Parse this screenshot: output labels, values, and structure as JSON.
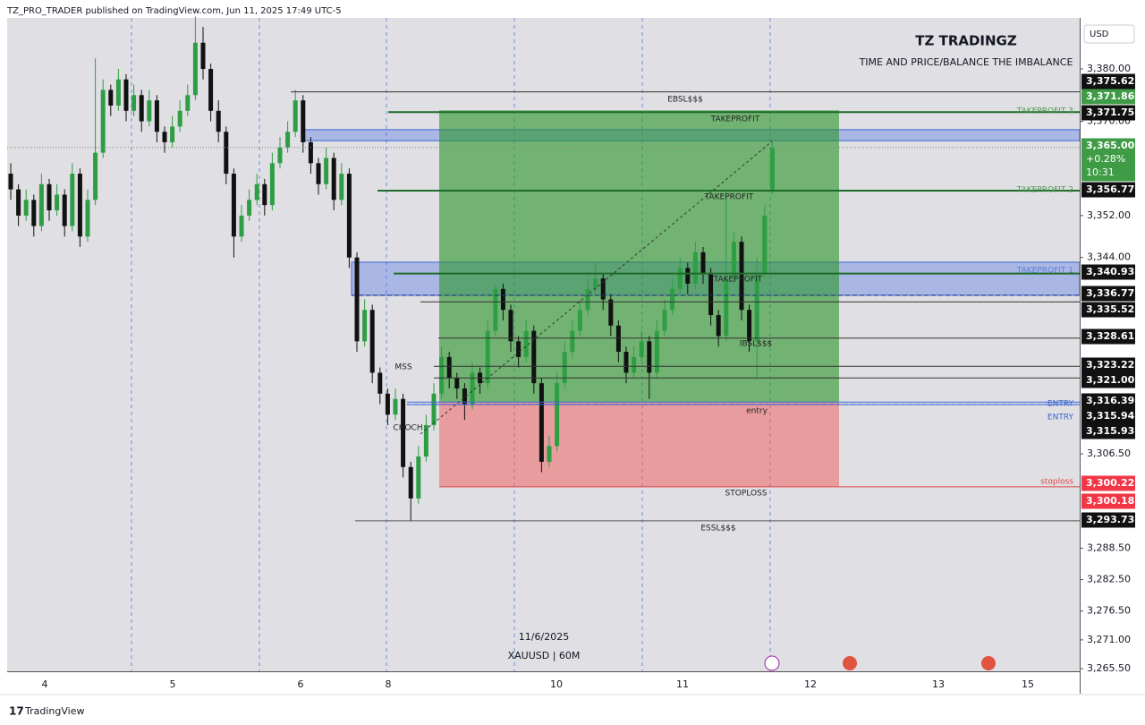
{
  "header": {
    "publisher": "TZ_PRO_TRADER published on TradingView.com, Jun 11, 2025 17:49 UTC-5"
  },
  "chart_data": {
    "type": "candlestick",
    "title": "TZ TRADINGZ",
    "subtitle": "TIME AND PRICE/BALANCE THE IMBALANCE",
    "currency": "USD",
    "date_label": "11/6/2025",
    "symbol_label": "XAUUSD | 60M",
    "up_color": "#2e9e44",
    "down_color": "#111111",
    "ylim": [
      3265,
      3389.74
    ],
    "yticks": [
      {
        "value": 3380,
        "label": "3,380.00"
      },
      {
        "value": 3370,
        "label": "3,370.00"
      },
      {
        "value": 3352,
        "label": "3,352.00"
      },
      {
        "value": 3344,
        "label": "3,344.00"
      },
      {
        "value": 3306.5,
        "label": "3,306.50"
      },
      {
        "value": 3288.5,
        "label": "3,288.50"
      },
      {
        "value": 3282.5,
        "label": "3,282.50"
      },
      {
        "value": 3276.5,
        "label": "3,276.50"
      },
      {
        "value": 3271,
        "label": "3,271.00"
      },
      {
        "value": 3265.5,
        "label": "3,265.50"
      }
    ],
    "xtick_labels": [
      "4",
      "5",
      "6",
      "8",
      "10",
      "11",
      "12",
      "13",
      "15"
    ],
    "ohlc": [
      [
        3360,
        3362,
        3355,
        3357
      ],
      [
        3357,
        3358,
        3350,
        3352
      ],
      [
        3352,
        3357,
        3351,
        3355
      ],
      [
        3355,
        3356,
        3348,
        3350
      ],
      [
        3350,
        3360,
        3349,
        3358
      ],
      [
        3358,
        3359,
        3351,
        3353
      ],
      [
        3353,
        3358,
        3352,
        3356
      ],
      [
        3356,
        3357,
        3348,
        3350
      ],
      [
        3350,
        3362,
        3349,
        3360
      ],
      [
        3360,
        3361,
        3346,
        3348
      ],
      [
        3348,
        3357,
        3347,
        3355
      ],
      [
        3355,
        3382,
        3354,
        3364
      ],
      [
        3364,
        3378,
        3363,
        3376
      ],
      [
        3376,
        3377,
        3371,
        3373
      ],
      [
        3373,
        3380,
        3372,
        3378
      ],
      [
        3378,
        3379,
        3370,
        3372
      ],
      [
        3372,
        3377,
        3371,
        3375
      ],
      [
        3375,
        3376,
        3368,
        3370
      ],
      [
        3370,
        3376,
        3369,
        3374
      ],
      [
        3374,
        3375,
        3366,
        3368
      ],
      [
        3368,
        3369,
        3364,
        3366
      ],
      [
        3366,
        3371,
        3365,
        3369
      ],
      [
        3369,
        3374,
        3368,
        3372
      ],
      [
        3372,
        3377,
        3371,
        3375
      ],
      [
        3375,
        3390,
        3374,
        3385
      ],
      [
        3385,
        3388,
        3378,
        3380
      ],
      [
        3380,
        3381,
        3370,
        3372
      ],
      [
        3372,
        3374,
        3366,
        3368
      ],
      [
        3368,
        3369,
        3358,
        3360
      ],
      [
        3360,
        3361,
        3344,
        3348
      ],
      [
        3348,
        3354,
        3347,
        3352
      ],
      [
        3352,
        3357,
        3351,
        3355
      ],
      [
        3355,
        3360,
        3354,
        3358
      ],
      [
        3358,
        3359,
        3352,
        3354
      ],
      [
        3354,
        3364,
        3353,
        3362
      ],
      [
        3362,
        3367,
        3361,
        3365
      ],
      [
        3365,
        3370,
        3364,
        3368
      ],
      [
        3368,
        3376,
        3367,
        3374
      ],
      [
        3374,
        3375,
        3364,
        3366
      ],
      [
        3366,
        3367,
        3360,
        3362
      ],
      [
        3362,
        3363,
        3356,
        3358
      ],
      [
        3358,
        3365,
        3357,
        3363
      ],
      [
        3363,
        3364,
        3353,
        3355
      ],
      [
        3355,
        3362,
        3354,
        3360
      ],
      [
        3360,
        3361,
        3342,
        3344
      ],
      [
        3344,
        3345,
        3326,
        3328
      ],
      [
        3328,
        3336,
        3327,
        3334
      ],
      [
        3334,
        3335,
        3320,
        3322
      ],
      [
        3322,
        3323,
        3316,
        3318
      ],
      [
        3318,
        3319,
        3312,
        3314
      ],
      [
        3314,
        3319,
        3313,
        3317
      ],
      [
        3317,
        3318,
        3302,
        3304
      ],
      [
        3304,
        3305,
        3293.7,
        3298
      ],
      [
        3298,
        3308,
        3297,
        3306
      ],
      [
        3306,
        3314,
        3305,
        3312
      ],
      [
        3312,
        3320,
        3311,
        3318
      ],
      [
        3318,
        3327,
        3317,
        3325
      ],
      [
        3325,
        3326,
        3319,
        3321
      ],
      [
        3321,
        3322,
        3317,
        3319
      ],
      [
        3319,
        3320,
        3313,
        3316
      ],
      [
        3316,
        3324,
        3315,
        3322
      ],
      [
        3322,
        3323,
        3318,
        3320
      ],
      [
        3320,
        3332,
        3319,
        3330
      ],
      [
        3330,
        3339,
        3329,
        3338
      ],
      [
        3338,
        3339,
        3332,
        3334
      ],
      [
        3334,
        3335,
        3326,
        3328
      ],
      [
        3328,
        3329,
        3323,
        3325
      ],
      [
        3325,
        3332,
        3324,
        3330
      ],
      [
        3330,
        3331,
        3318,
        3320
      ],
      [
        3320,
        3321,
        3303,
        3305
      ],
      [
        3305,
        3310,
        3304,
        3308
      ],
      [
        3308,
        3322,
        3307,
        3320
      ],
      [
        3320,
        3328,
        3319,
        3326
      ],
      [
        3326,
        3332,
        3325,
        3330
      ],
      [
        3330,
        3336,
        3329,
        3334
      ],
      [
        3334,
        3340,
        3333,
        3338
      ],
      [
        3338,
        3343,
        3337,
        3340
      ],
      [
        3340,
        3341,
        3334,
        3336
      ],
      [
        3336,
        3337,
        3329,
        3331
      ],
      [
        3331,
        3332,
        3324,
        3326
      ],
      [
        3326,
        3327,
        3320,
        3322
      ],
      [
        3322,
        3327,
        3321,
        3325
      ],
      [
        3325,
        3330,
        3324,
        3328
      ],
      [
        3328,
        3329,
        3317,
        3322
      ],
      [
        3322,
        3332,
        3321,
        3330
      ],
      [
        3330,
        3336,
        3329,
        3334
      ],
      [
        3334,
        3340,
        3333,
        3338
      ],
      [
        3338,
        3344,
        3337,
        3342
      ],
      [
        3342,
        3343,
        3337,
        3339
      ],
      [
        3339,
        3347,
        3338,
        3345
      ],
      [
        3345,
        3346,
        3339,
        3341
      ],
      [
        3341,
        3342,
        3331,
        3333
      ],
      [
        3333,
        3334,
        3327,
        3329
      ],
      [
        3329,
        3357,
        3328,
        3340
      ],
      [
        3340,
        3349,
        3339,
        3347
      ],
      [
        3347,
        3348,
        3332,
        3334
      ],
      [
        3334,
        3335,
        3326,
        3328
      ],
      [
        3328,
        3344,
        3321,
        3341
      ],
      [
        3341,
        3354,
        3340,
        3352
      ],
      [
        3357,
        3366,
        3356,
        3365
      ]
    ],
    "price_labels": [
      {
        "value": 3375.62,
        "label": "3,375.62",
        "color": "#111111"
      },
      {
        "value": 3371.86,
        "label": "3,371.86",
        "color": "#3f9b46"
      },
      {
        "value": 3371.75,
        "label": "3,371.75",
        "color": "#111111"
      },
      {
        "value": 3365.0,
        "label": "3,365.00",
        "change": "+0.28%",
        "countdown": "10:31",
        "color": "#3f9b46"
      },
      {
        "value": 3356.77,
        "label": "3,356.77",
        "color": "#111111"
      },
      {
        "value": 3340.93,
        "label": "3,340.93",
        "color": "#111111"
      },
      {
        "value": 3336.77,
        "label": "3,336.77",
        "color": "#111111"
      },
      {
        "value": 3335.52,
        "label": "3,335.52",
        "color": "#111111"
      },
      {
        "value": 3328.61,
        "label": "3,328.61",
        "color": "#111111"
      },
      {
        "value": 3323.22,
        "label": "3,323.22",
        "color": "#111111"
      },
      {
        "value": 3321.0,
        "label": "3,321.00",
        "color": "#111111"
      },
      {
        "value": 3316.39,
        "label": "3,316.39",
        "color": "#111111"
      },
      {
        "value": 3315.94,
        "label": "3,315.94",
        "color": "#111111"
      },
      {
        "value": 3315.93,
        "label": "3,315.93",
        "color": "#111111"
      },
      {
        "value": 3300.22,
        "label": "3,300.22",
        "color": "#f23645"
      },
      {
        "value": 3300.18,
        "label": "3,300.18",
        "color": "#f23645"
      },
      {
        "value": 3293.73,
        "label": "3,293.73",
        "color": "#111111"
      }
    ],
    "zones": [
      {
        "top": 3368.4,
        "bottom": 3366.3,
        "color": "rgba(70,110,230,0.35)"
      },
      {
        "top": 3343.1,
        "bottom": 3336.8,
        "color": "rgba(70,110,230,0.35)"
      },
      {
        "top": 3372.1,
        "bottom": 3316.4,
        "color": "rgba(40,150,40,0.6)"
      },
      {
        "top": 3316.4,
        "bottom": 3300.3,
        "color": "rgba(240,90,90,0.5)"
      }
    ],
    "annotations": [
      "EBSL$$$",
      "TAKEPROFIT",
      "TAKEPROFIT",
      "TAKEPROFIT",
      "IBSL$$$",
      "entry",
      "STOPLOSS",
      "ESSL$$$",
      "MSS",
      "CHOCH",
      "TAKEPROFIT 3",
      "TAKEPROFIT 2",
      "TAKEPROFIT 1",
      "ENTRY",
      "ENTRY",
      "stoploss"
    ]
  },
  "footer": {
    "brand": "TradingView"
  }
}
